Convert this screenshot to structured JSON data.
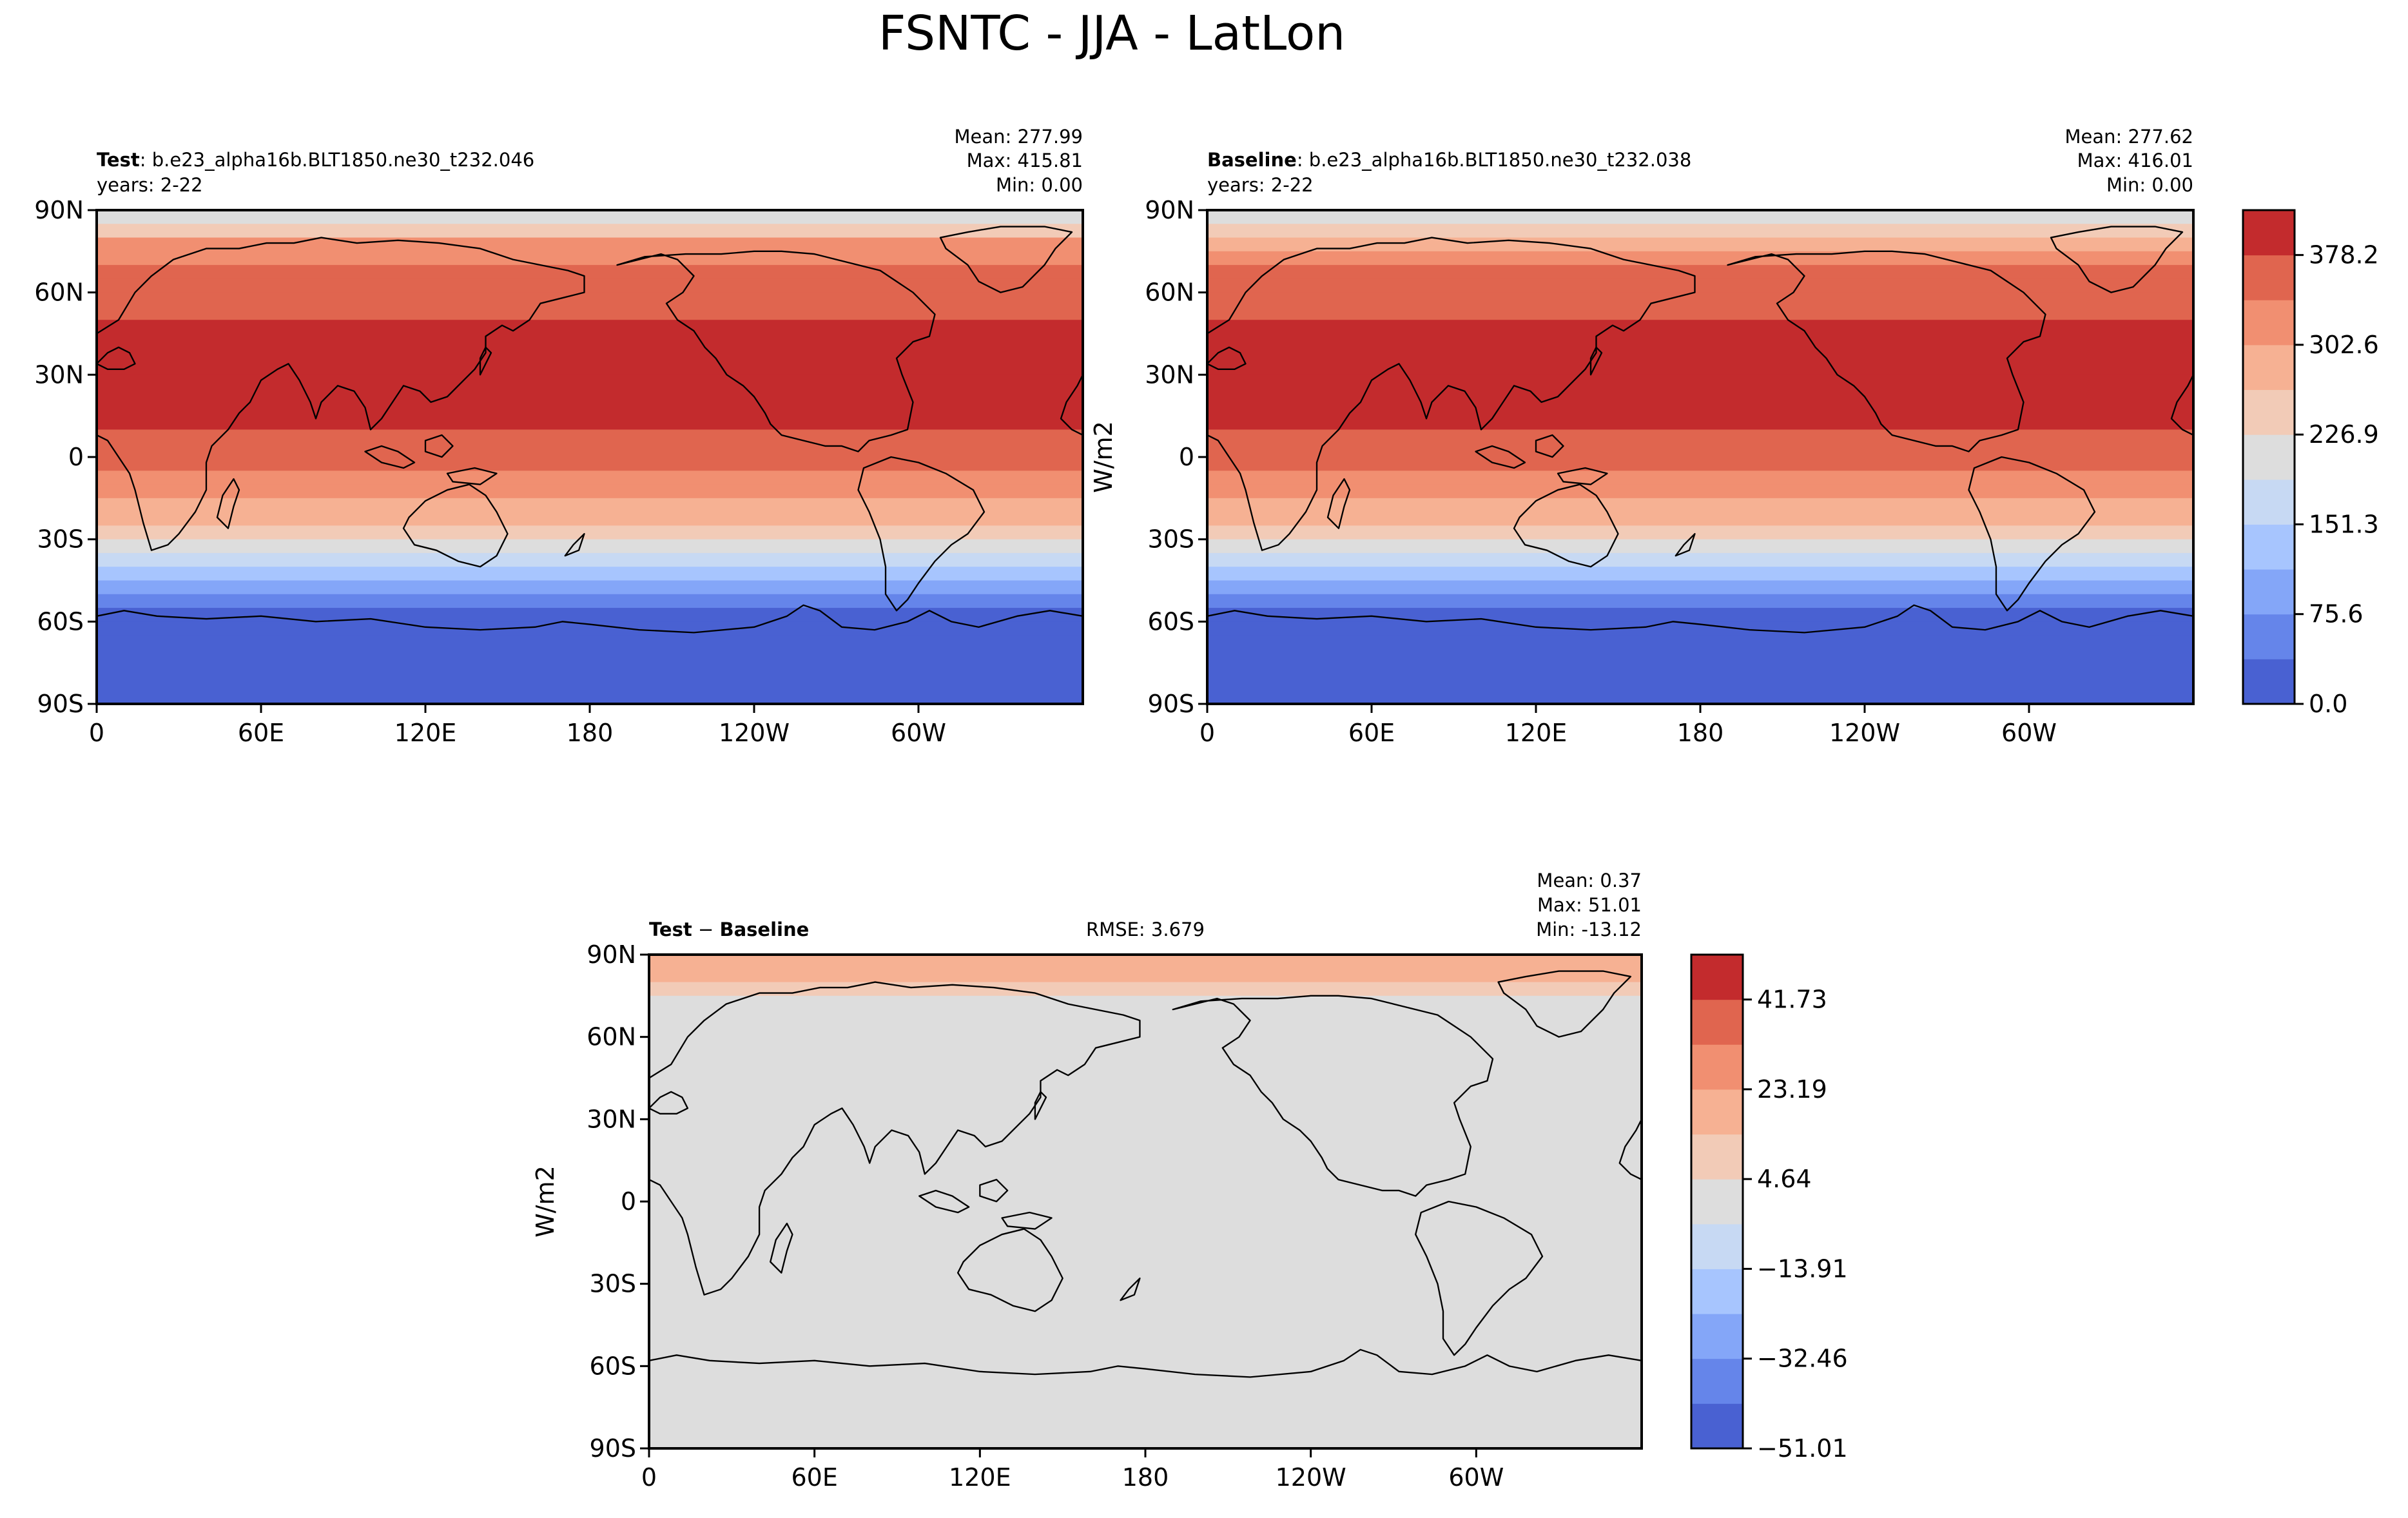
{
  "figure": {
    "title": "FSNTC - JJA - LatLon"
  },
  "chart_data": [
    {
      "type": "heatmap",
      "panel": "test",
      "label_bold": "Test",
      "label_rest": ": b.e23_alpha16b.BLT1850.ne30_t232.046",
      "years": "years: 2-22",
      "stats": {
        "mean": "Mean: 277.99",
        "max": "Max: 415.81",
        "min": "Min:  0.00"
      },
      "x_ticks": [
        "0",
        "60E",
        "120E",
        "180",
        "120W",
        "60W"
      ],
      "y_ticks": [
        "90N",
        "60N",
        "30N",
        "0",
        "30S",
        "60S",
        "90S"
      ],
      "lat_band_values": [
        {
          "lat": 90,
          "value": 200
        },
        {
          "lat": 85,
          "value": 215
        },
        {
          "lat": 80,
          "value": 290
        },
        {
          "lat": 75,
          "value": 320
        },
        {
          "lat": 70,
          "value": 345
        },
        {
          "lat": 65,
          "value": 355
        },
        {
          "lat": 60,
          "value": 360
        },
        {
          "lat": 55,
          "value": 370
        },
        {
          "lat": 50,
          "value": 385
        },
        {
          "lat": 40,
          "value": 398
        },
        {
          "lat": 30,
          "value": 400
        },
        {
          "lat": 20,
          "value": 395
        },
        {
          "lat": 10,
          "value": 375
        },
        {
          "lat": 5,
          "value": 365
        },
        {
          "lat": 0,
          "value": 355
        },
        {
          "lat": -5,
          "value": 340
        },
        {
          "lat": -10,
          "value": 320
        },
        {
          "lat": -15,
          "value": 300
        },
        {
          "lat": -20,
          "value": 280
        },
        {
          "lat": -25,
          "value": 255
        },
        {
          "lat": -30,
          "value": 230
        },
        {
          "lat": -35,
          "value": 190
        },
        {
          "lat": -40,
          "value": 155
        },
        {
          "lat": -45,
          "value": 120
        },
        {
          "lat": -50,
          "value": 85
        },
        {
          "lat": -55,
          "value": 55
        },
        {
          "lat": -60,
          "value": 20
        },
        {
          "lat": -65,
          "value": 5
        },
        {
          "lat": -90,
          "value": 0
        }
      ],
      "colorbar": {
        "ticks": [
          "378.2",
          "302.6",
          "226.9",
          "151.3",
          "75.6",
          "0.0"
        ],
        "units": "W/m2"
      }
    },
    {
      "type": "heatmap",
      "panel": "baseline",
      "label_bold": "Baseline",
      "label_rest": ": b.e23_alpha16b.BLT1850.ne30_t232.038",
      "years": "years: 2-22",
      "stats": {
        "mean": "Mean: 277.62",
        "max": "Max: 416.01",
        "min": "Min:  0.00"
      },
      "x_ticks": [
        "0",
        "60E",
        "120E",
        "180",
        "120W",
        "60W"
      ],
      "y_ticks": [
        "90N",
        "60N",
        "30N",
        "0",
        "30S",
        "60S",
        "90S"
      ],
      "ylabel": "W/m2",
      "lat_band_values": [
        {
          "lat": 90,
          "value": 200
        },
        {
          "lat": 85,
          "value": 205
        },
        {
          "lat": 80,
          "value": 270
        },
        {
          "lat": 75,
          "value": 310
        },
        {
          "lat": 70,
          "value": 340
        },
        {
          "lat": 65,
          "value": 355
        },
        {
          "lat": 60,
          "value": 360
        },
        {
          "lat": 55,
          "value": 370
        },
        {
          "lat": 50,
          "value": 385
        },
        {
          "lat": 40,
          "value": 398
        },
        {
          "lat": 30,
          "value": 400
        },
        {
          "lat": 20,
          "value": 395
        },
        {
          "lat": 10,
          "value": 375
        },
        {
          "lat": 5,
          "value": 365
        },
        {
          "lat": 0,
          "value": 355
        },
        {
          "lat": -5,
          "value": 340
        },
        {
          "lat": -10,
          "value": 320
        },
        {
          "lat": -15,
          "value": 300
        },
        {
          "lat": -20,
          "value": 280
        },
        {
          "lat": -25,
          "value": 255
        },
        {
          "lat": -30,
          "value": 230
        },
        {
          "lat": -35,
          "value": 190
        },
        {
          "lat": -40,
          "value": 155
        },
        {
          "lat": -45,
          "value": 120
        },
        {
          "lat": -50,
          "value": 85
        },
        {
          "lat": -55,
          "value": 55
        },
        {
          "lat": -60,
          "value": 20
        },
        {
          "lat": -65,
          "value": 5
        },
        {
          "lat": -90,
          "value": 0
        }
      ],
      "colorbar": {
        "ticks": [
          "378.2",
          "302.6",
          "226.9",
          "151.3",
          "75.6",
          "0.0"
        ],
        "units": "W/m2"
      }
    },
    {
      "type": "heatmap",
      "panel": "diff",
      "label_bold": "Test",
      "label_minus": " − ",
      "label_bold2": "Baseline",
      "rmse": "RMSE: 3.679",
      "stats": {
        "mean": "Mean:  0.37",
        "max": "Max: 51.01",
        "min": "Min: -13.12"
      },
      "x_ticks": [
        "0",
        "60E",
        "120E",
        "180",
        "120W",
        "60W"
      ],
      "y_ticks": [
        "90N",
        "60N",
        "30N",
        "0",
        "30S",
        "60S",
        "90S"
      ],
      "ylabel": "W/m2",
      "lat_band_values": [
        {
          "lat": 90,
          "value": 10
        },
        {
          "lat": 85,
          "value": 20
        },
        {
          "lat": 80,
          "value": 12
        },
        {
          "lat": 75,
          "value": 6
        },
        {
          "lat": 70,
          "value": 0
        },
        {
          "lat": -90,
          "value": 0
        }
      ],
      "colorbar": {
        "ticks": [
          "41.73",
          "23.19",
          "4.64",
          "−13.91",
          "−32.46",
          "−51.01"
        ],
        "units": "W/m2"
      }
    }
  ],
  "colormap_coolwarm_11": [
    "#4961d2",
    "#6585ea",
    "#84a6f8",
    "#a7c5fe",
    "#c7d9f3",
    "#dddddd",
    "#f2cbb7",
    "#f6b193",
    "#f18f71",
    "#e0654f",
    "#c32b2d"
  ]
}
